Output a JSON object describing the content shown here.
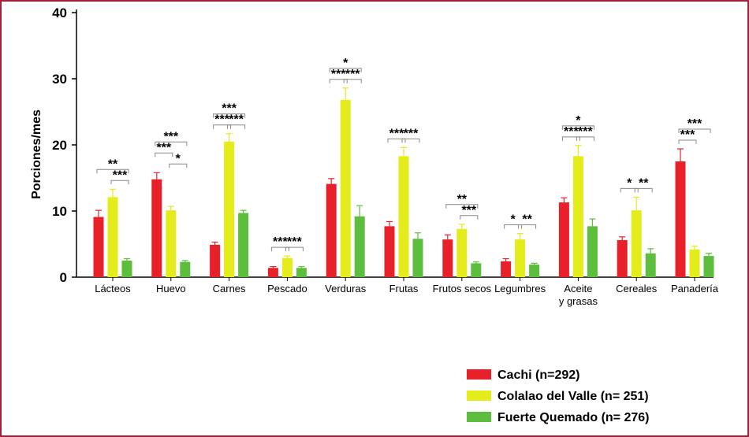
{
  "chart_data": {
    "type": "bar",
    "ylabel": "Porciones/mes",
    "xlabel": "",
    "ylim": [
      0,
      40
    ],
    "yticks": [
      0,
      10,
      20,
      30,
      40
    ],
    "grid": false,
    "legend_position": "bottom-right",
    "categories": [
      [
        "Lácteos"
      ],
      [
        "Huevo"
      ],
      [
        "Carnes"
      ],
      [
        "Pescado"
      ],
      [
        "Verduras"
      ],
      [
        "Frutas"
      ],
      [
        "Frutos secos"
      ],
      [
        "Legumbres"
      ],
      [
        "Aceite",
        "y grasas"
      ],
      [
        "Cereales"
      ],
      [
        "Panadería"
      ]
    ],
    "series": [
      {
        "name": "Cachi (n=292)",
        "color": "#e8202a",
        "values": [
          9.1,
          14.8,
          4.9,
          1.4,
          14.1,
          7.7,
          5.7,
          2.4,
          11.3,
          5.6,
          17.5
        ],
        "errors": [
          1.0,
          1.0,
          0.4,
          0.2,
          0.8,
          0.7,
          0.7,
          0.4,
          0.7,
          0.5,
          1.9
        ]
      },
      {
        "name": "Colalao del Valle (n= 251)",
        "color": "#e4ec1c",
        "values": [
          12.1,
          10.1,
          20.5,
          2.9,
          26.8,
          18.3,
          7.3,
          5.7,
          18.3,
          10.1,
          4.2
        ],
        "errors": [
          1.2,
          0.6,
          1.2,
          0.3,
          1.8,
          1.3,
          0.7,
          0.9,
          1.6,
          2.0,
          0.5
        ]
      },
      {
        "name": "Fuerte Quemado (n= 276)",
        "color": "#5cbe3c",
        "values": [
          2.5,
          2.3,
          9.7,
          1.4,
          9.2,
          5.8,
          2.1,
          1.9,
          7.7,
          3.6,
          3.2
        ],
        "errors": [
          0.3,
          0.2,
          0.4,
          0.2,
          1.6,
          0.9,
          0.2,
          0.2,
          1.1,
          0.7,
          0.4
        ]
      }
    ],
    "significance": [
      {
        "category": 0,
        "from": 1,
        "to": 2,
        "label": "***",
        "level": 1
      },
      {
        "category": 0,
        "from": 0,
        "to": 2,
        "label": "**",
        "level": 2
      },
      {
        "category": 1,
        "from": 1,
        "to": 2,
        "label": "*",
        "level": 1
      },
      {
        "category": 1,
        "from": 0,
        "to": 1,
        "label": "***",
        "level": 2
      },
      {
        "category": 1,
        "from": 0,
        "to": 2,
        "label": "***",
        "level": 3
      },
      {
        "category": 2,
        "from": 0,
        "to": 1,
        "label": "***",
        "level": 1
      },
      {
        "category": 2,
        "from": 1,
        "to": 2,
        "label": "***",
        "level": 1
      },
      {
        "category": 2,
        "from": 0,
        "to": 2,
        "label": "***",
        "level": 2
      },
      {
        "category": 3,
        "from": 0,
        "to": 1,
        "label": "***",
        "level": 1
      },
      {
        "category": 3,
        "from": 1,
        "to": 2,
        "label": "***",
        "level": 1
      },
      {
        "category": 4,
        "from": 0,
        "to": 1,
        "label": "***",
        "level": 1
      },
      {
        "category": 4,
        "from": 1,
        "to": 2,
        "label": "***",
        "level": 1
      },
      {
        "category": 4,
        "from": 0,
        "to": 2,
        "label": "*",
        "level": 2
      },
      {
        "category": 5,
        "from": 0,
        "to": 1,
        "label": "***",
        "level": 1
      },
      {
        "category": 5,
        "from": 1,
        "to": 2,
        "label": "***",
        "level": 1
      },
      {
        "category": 6,
        "from": 1,
        "to": 2,
        "label": "***",
        "level": 1
      },
      {
        "category": 6,
        "from": 0,
        "to": 2,
        "label": "**",
        "level": 2
      },
      {
        "category": 7,
        "from": 0,
        "to": 1,
        "label": "*",
        "level": 1
      },
      {
        "category": 7,
        "from": 1,
        "to": 2,
        "label": "**",
        "level": 1
      },
      {
        "category": 8,
        "from": 0,
        "to": 1,
        "label": "***",
        "level": 1
      },
      {
        "category": 8,
        "from": 1,
        "to": 2,
        "label": "***",
        "level": 1
      },
      {
        "category": 8,
        "from": 0,
        "to": 2,
        "label": "*",
        "level": 2
      },
      {
        "category": 9,
        "from": 0,
        "to": 1,
        "label": "*",
        "level": 1
      },
      {
        "category": 9,
        "from": 1,
        "to": 2,
        "label": "**",
        "level": 1
      },
      {
        "category": 10,
        "from": 0,
        "to": 1,
        "label": "***",
        "level": 1
      },
      {
        "category": 10,
        "from": 0,
        "to": 2,
        "label": "***",
        "level": 2
      }
    ]
  }
}
